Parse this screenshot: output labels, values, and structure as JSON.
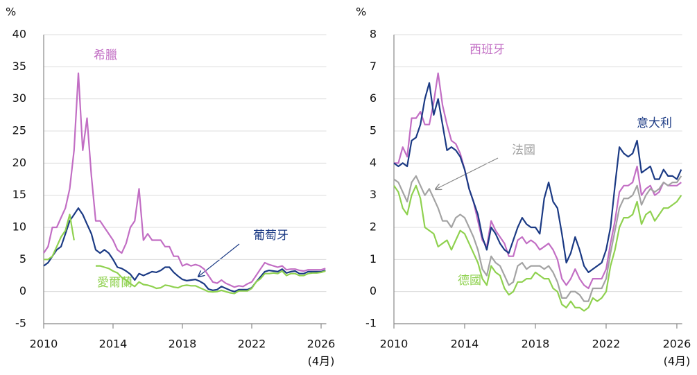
{
  "chart_data": [
    {
      "type": "line",
      "y_label": "%",
      "x_note": "(4月)",
      "x": [
        2010,
        2010.25,
        2010.5,
        2010.75,
        2011,
        2011.25,
        2011.5,
        2011.75,
        2012,
        2012.25,
        2012.5,
        2012.75,
        2013,
        2013.25,
        2013.5,
        2013.75,
        2014,
        2014.25,
        2014.5,
        2014.75,
        2015,
        2015.25,
        2015.5,
        2015.75,
        2016,
        2016.25,
        2016.5,
        2016.75,
        2017,
        2017.25,
        2017.5,
        2017.75,
        2018,
        2018.25,
        2018.5,
        2018.75,
        2019,
        2019.25,
        2019.5,
        2019.75,
        2020,
        2020.25,
        2020.5,
        2020.75,
        2021,
        2021.25,
        2021.5,
        2021.75,
        2022,
        2022.25,
        2022.5,
        2022.75,
        2023,
        2023.25,
        2023.5,
        2023.75,
        2024,
        2024.25,
        2024.5,
        2024.75,
        2025,
        2025.25,
        2025.5,
        2025.75,
        2026,
        2026.25
      ],
      "xlim": [
        2010,
        2026.3
      ],
      "xticks": [
        2010,
        2014,
        2018,
        2022,
        2026
      ],
      "ylim": [
        -5,
        40
      ],
      "yticks": [
        -5,
        0,
        5,
        10,
        15,
        20,
        25,
        30,
        35,
        40
      ],
      "grid": true,
      "series": [
        {
          "name": "希臘",
          "color": "#c26ec4",
          "values": [
            6,
            7,
            10,
            10,
            11.5,
            13,
            16,
            22,
            34,
            22,
            27,
            18,
            11,
            11,
            10,
            9,
            8,
            6.5,
            6,
            7.5,
            10,
            11,
            16,
            8,
            9,
            8,
            8,
            8,
            7,
            7,
            5.5,
            5.5,
            4,
            4.3,
            4,
            4.2,
            4,
            3.5,
            2.5,
            1.5,
            1.3,
            1.8,
            1.3,
            1,
            0.7,
            0.9,
            0.8,
            1.2,
            1.5,
            2.5,
            3.5,
            4.5,
            4.2,
            4,
            3.8,
            4,
            3.4,
            3.5,
            3.5,
            3.3,
            3.2,
            3.4,
            3.4,
            3.4,
            3.4,
            3.6
          ]
        },
        {
          "name": "葡萄牙",
          "color": "#1b3a84",
          "values": [
            4,
            4.5,
            5.5,
            6.5,
            7,
            9,
            11,
            12,
            13,
            12,
            10.5,
            9,
            6.5,
            6,
            6.5,
            6,
            5,
            3.8,
            3.6,
            3.2,
            2.7,
            1.8,
            2.8,
            2.5,
            2.8,
            3.1,
            3,
            3.3,
            3.8,
            3.8,
            3,
            2.4,
            1.9,
            1.7,
            1.8,
            1.9,
            1.6,
            1.2,
            0.4,
            0.2,
            0.3,
            0.8,
            0.5,
            0.2,
            0,
            0.3,
            0.3,
            0.3,
            0.6,
            1.5,
            2.3,
            3.1,
            3.3,
            3.2,
            3.1,
            3.5,
            2.9,
            3.1,
            3.2,
            2.8,
            2.8,
            3.1,
            3.1,
            3.1,
            3.1,
            3.3
          ]
        },
        {
          "name": "愛爾蘭",
          "color": "#8fd14f",
          "values": [
            5,
            5,
            5.5,
            7,
            8.5,
            9.5,
            12,
            8,
            null,
            null,
            null,
            null,
            4,
            4,
            3.8,
            3.6,
            3.2,
            2.9,
            2.2,
            1.8,
            1.2,
            0.8,
            1.5,
            1.1,
            1,
            0.8,
            0.5,
            0.6,
            1,
            0.9,
            0.7,
            0.6,
            0.9,
            1,
            0.9,
            0.9,
            0.6,
            0.3,
            0,
            -0.05,
            0,
            0.2,
            0,
            -0.2,
            -0.3,
            0.1,
            0.1,
            0.1,
            0.5,
            1.5,
            2,
            2.8,
            2.8,
            2.9,
            2.8,
            3.2,
            2.5,
            2.8,
            2.8,
            2.5,
            2.5,
            2.8,
            2.9,
            2.9,
            3,
            3.2
          ]
        }
      ]
    },
    {
      "type": "line",
      "y_label": "%",
      "x_note": "(4月)",
      "x": [
        2010,
        2010.25,
        2010.5,
        2010.75,
        2011,
        2011.25,
        2011.5,
        2011.75,
        2012,
        2012.25,
        2012.5,
        2012.75,
        2013,
        2013.25,
        2013.5,
        2013.75,
        2014,
        2014.25,
        2014.5,
        2014.75,
        2015,
        2015.25,
        2015.5,
        2015.75,
        2016,
        2016.25,
        2016.5,
        2016.75,
        2017,
        2017.25,
        2017.5,
        2017.75,
        2018,
        2018.25,
        2018.5,
        2018.75,
        2019,
        2019.25,
        2019.5,
        2019.75,
        2020,
        2020.25,
        2020.5,
        2020.75,
        2021,
        2021.25,
        2021.5,
        2021.75,
        2022,
        2022.25,
        2022.5,
        2022.75,
        2023,
        2023.25,
        2023.5,
        2023.75,
        2024,
        2024.25,
        2024.5,
        2024.75,
        2025,
        2025.25,
        2025.5,
        2025.75,
        2026,
        2026.25
      ],
      "xlim": [
        2010,
        2026.3
      ],
      "xticks": [
        2010,
        2014,
        2018,
        2022,
        2026
      ],
      "ylim": [
        -1,
        8
      ],
      "yticks": [
        -1,
        0,
        1,
        2,
        3,
        4,
        5,
        6,
        7,
        8
      ],
      "grid": true,
      "series": [
        {
          "name": "西班牙",
          "color": "#c26ec4",
          "values": [
            4,
            4,
            4.5,
            4.2,
            5.4,
            5.4,
            5.6,
            5.2,
            5.2,
            5.9,
            6.8,
            5.8,
            5.2,
            4.7,
            4.6,
            4.3,
            3.8,
            3.2,
            2.8,
            2.2,
            1.6,
            1.4,
            2.2,
            1.9,
            1.7,
            1.5,
            1.1,
            1.1,
            1.6,
            1.7,
            1.5,
            1.6,
            1.5,
            1.3,
            1.4,
            1.5,
            1.3,
            1,
            0.4,
            0.2,
            0.4,
            0.7,
            0.4,
            0.2,
            0.1,
            0.4,
            0.4,
            0.4,
            0.7,
            1.5,
            2.2,
            3.1,
            3.3,
            3.3,
            3.4,
            3.9,
            3,
            3.2,
            3.3,
            3,
            3.1,
            3.4,
            3.3,
            3.3,
            3.3,
            3.4
          ]
        },
        {
          "name": "意大利",
          "color": "#1b3a84",
          "values": [
            4,
            3.9,
            4,
            3.9,
            4.7,
            4.8,
            5.2,
            6,
            6.5,
            5.5,
            6,
            5.2,
            4.4,
            4.5,
            4.4,
            4.2,
            3.8,
            3.2,
            2.8,
            2.4,
            1.7,
            1.3,
            2,
            1.8,
            1.5,
            1.3,
            1.2,
            1.6,
            2,
            2.3,
            2.1,
            2,
            2,
            1.8,
            2.9,
            3.4,
            2.8,
            2.6,
            1.8,
            0.9,
            1.2,
            1.7,
            1.3,
            0.8,
            0.6,
            0.7,
            0.8,
            0.9,
            1.3,
            2,
            3.3,
            4.5,
            4.3,
            4.2,
            4.3,
            4.7,
            3.7,
            3.8,
            3.9,
            3.5,
            3.5,
            3.8,
            3.6,
            3.6,
            3.5,
            3.8
          ]
        },
        {
          "name": "法國",
          "color": "#a3a3a3",
          "values": [
            3.5,
            3.4,
            3.1,
            2.8,
            3.4,
            3.6,
            3.3,
            3,
            3.2,
            2.9,
            2.6,
            2.2,
            2.2,
            2,
            2.3,
            2.4,
            2.3,
            2,
            1.7,
            1.3,
            0.7,
            0.5,
            1.1,
            0.9,
            0.8,
            0.5,
            0.2,
            0.3,
            0.8,
            0.9,
            0.7,
            0.8,
            0.8,
            0.8,
            0.7,
            0.8,
            0.6,
            0.3,
            -0.2,
            -0.2,
            0,
            0,
            -0.1,
            -0.3,
            -0.3,
            0.1,
            0.1,
            0.1,
            0.4,
            1.2,
            1.9,
            2.6,
            2.9,
            2.9,
            3,
            3.3,
            2.7,
            3,
            3.2,
            3.1,
            3.2,
            3.4,
            3.3,
            3.4,
            3.4,
            3.6
          ]
        },
        {
          "name": "德國",
          "color": "#8fd14f",
          "values": [
            3.3,
            3.1,
            2.6,
            2.4,
            3,
            3.3,
            2.9,
            2,
            1.9,
            1.8,
            1.4,
            1.5,
            1.6,
            1.3,
            1.6,
            1.9,
            1.8,
            1.5,
            1.2,
            0.9,
            0.4,
            0.2,
            0.8,
            0.6,
            0.5,
            0.1,
            -0.1,
            0,
            0.3,
            0.3,
            0.4,
            0.4,
            0.6,
            0.5,
            0.4,
            0.4,
            0.1,
            0,
            -0.4,
            -0.5,
            -0.3,
            -0.5,
            -0.5,
            -0.6,
            -0.5,
            -0.2,
            -0.3,
            -0.2,
            0,
            0.8,
            1.3,
            2,
            2.3,
            2.3,
            2.4,
            2.8,
            2.1,
            2.4,
            2.5,
            2.2,
            2.4,
            2.6,
            2.6,
            2.7,
            2.8,
            3
          ]
        }
      ]
    }
  ]
}
